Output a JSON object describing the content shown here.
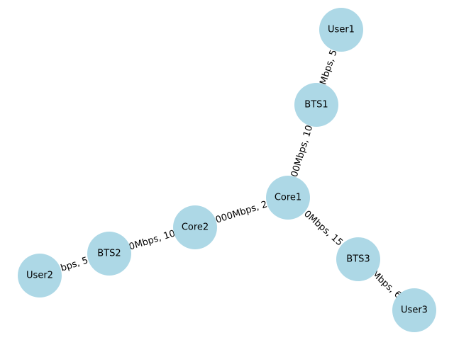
{
  "colors": {
    "node_fill": "#add8e6",
    "edge_stroke": "#000000",
    "label_bg": "#ffffff"
  },
  "nodes": [
    {
      "id": "User1",
      "label": "User1"
    },
    {
      "id": "BTS1",
      "label": "BTS1"
    },
    {
      "id": "Core1",
      "label": "Core1"
    },
    {
      "id": "Core2",
      "label": "Core2"
    },
    {
      "id": "BTS2",
      "label": "BTS2"
    },
    {
      "id": "User2",
      "label": "User2"
    },
    {
      "id": "BTS3",
      "label": "BTS3"
    },
    {
      "id": "User3",
      "label": "User3"
    }
  ],
  "edges": [
    {
      "source": "User1",
      "target": "BTS1",
      "label": "Mbps, 5"
    },
    {
      "source": "BTS1",
      "target": "Core1",
      "label": "00Mbps, 10"
    },
    {
      "source": "Core1",
      "target": "Core2",
      "label": "000Mbps, 2"
    },
    {
      "source": "Core2",
      "target": "BTS2",
      "label": "0Mbps, 10"
    },
    {
      "source": "BTS2",
      "target": "User2",
      "label": "bps, 5"
    },
    {
      "source": "Core1",
      "target": "BTS3",
      "label": "0Mbps, 15"
    },
    {
      "source": "BTS3",
      "target": "User3",
      "label": "Mbps, 6"
    }
  ]
}
